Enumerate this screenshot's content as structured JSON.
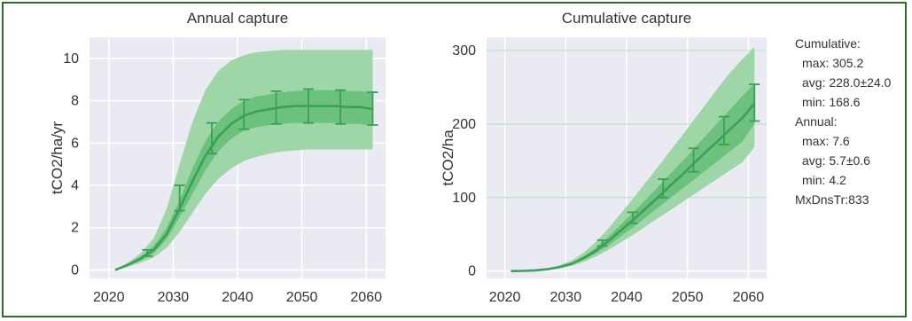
{
  "colors": {
    "plot_bg": "#e9eaf2",
    "grid": "#ffffff",
    "accent_grid": "#b7dcc2",
    "band_outer": "#9fd6a7",
    "band_inner": "#6cc17f",
    "line": "#3b9f55",
    "frame": "#2f6b2a",
    "text": "#333333"
  },
  "chart_data": [
    {
      "type": "area",
      "title": "Annual capture",
      "xlabel": "",
      "ylabel": "tCO2/ha/yr",
      "xlim": [
        2017,
        2063
      ],
      "ylim": [
        -0.4,
        11.0
      ],
      "xticks": [
        2020,
        2030,
        2040,
        2050,
        2060
      ],
      "yticks": [
        0,
        2,
        4,
        6,
        8,
        10
      ],
      "grid": true,
      "x": [
        2021,
        2023,
        2025,
        2027,
        2029,
        2031,
        2033,
        2035,
        2037,
        2039,
        2041,
        2043,
        2045,
        2047,
        2049,
        2051,
        2053,
        2055,
        2057,
        2059,
        2061
      ],
      "mean": [
        0.0,
        0.25,
        0.55,
        0.95,
        1.7,
        2.9,
        4.2,
        5.4,
        6.3,
        6.9,
        7.3,
        7.5,
        7.6,
        7.7,
        7.75,
        7.75,
        7.75,
        7.75,
        7.7,
        7.7,
        7.6
      ],
      "inner_low": [
        0.0,
        0.2,
        0.45,
        0.8,
        1.45,
        2.5,
        3.6,
        4.7,
        5.6,
        6.2,
        6.6,
        6.75,
        6.85,
        6.9,
        6.95,
        6.95,
        6.95,
        6.95,
        6.9,
        6.9,
        6.8
      ],
      "inner_high": [
        0.0,
        0.3,
        0.65,
        1.15,
        2.0,
        3.3,
        4.8,
        6.1,
        7.0,
        7.6,
        8.0,
        8.2,
        8.3,
        8.4,
        8.45,
        8.5,
        8.5,
        8.5,
        8.45,
        8.45,
        8.4
      ],
      "outer_low": [
        0.0,
        0.15,
        0.35,
        0.6,
        1.05,
        1.8,
        2.7,
        3.6,
        4.3,
        4.8,
        5.15,
        5.35,
        5.5,
        5.6,
        5.65,
        5.7,
        5.7,
        5.7,
        5.7,
        5.7,
        5.7
      ],
      "outer_high": [
        0.0,
        0.35,
        0.8,
        1.5,
        2.9,
        5.0,
        7.0,
        8.5,
        9.4,
        9.9,
        10.15,
        10.3,
        10.35,
        10.4,
        10.4,
        10.4,
        10.4,
        10.4,
        10.4,
        10.4,
        10.4
      ],
      "errorbars": [
        {
          "x": 2026,
          "mean": 0.8,
          "low": 0.65,
          "high": 0.95
        },
        {
          "x": 2031,
          "mean": 3.4,
          "low": 2.8,
          "high": 4.0
        },
        {
          "x": 2036,
          "mean": 6.2,
          "low": 5.5,
          "high": 6.95
        },
        {
          "x": 2041,
          "mean": 7.35,
          "low": 6.65,
          "high": 8.05
        },
        {
          "x": 2046,
          "mean": 7.65,
          "low": 6.9,
          "high": 8.45
        },
        {
          "x": 2051,
          "mean": 7.75,
          "low": 6.95,
          "high": 8.55
        },
        {
          "x": 2056,
          "mean": 7.7,
          "low": 6.9,
          "high": 8.5
        },
        {
          "x": 2061,
          "mean": 7.6,
          "low": 6.85,
          "high": 8.4
        }
      ]
    },
    {
      "type": "area",
      "title": "Cumulative capture",
      "xlabel": "",
      "ylabel": "tCO2/ha",
      "xlim": [
        2017,
        2063
      ],
      "ylim": [
        -10,
        318
      ],
      "xticks": [
        2020,
        2030,
        2040,
        2050,
        2060
      ],
      "yticks": [
        0,
        100,
        200,
        300
      ],
      "accent_hlines": [
        100,
        200,
        300
      ],
      "grid": true,
      "x": [
        2021,
        2023,
        2025,
        2027,
        2029,
        2031,
        2033,
        2035,
        2037,
        2039,
        2041,
        2043,
        2045,
        2047,
        2049,
        2051,
        2053,
        2055,
        2057,
        2059,
        2061
      ],
      "mean": [
        0,
        0.3,
        1.0,
        2.5,
        5.5,
        10,
        18,
        28,
        41,
        55,
        69,
        84,
        99,
        115,
        130,
        146,
        162,
        177,
        193,
        208,
        228
      ],
      "inner_low": [
        0,
        0.3,
        0.9,
        2.2,
        4.8,
        8.7,
        15.6,
        24,
        35,
        47,
        59,
        72,
        85,
        98,
        111,
        124,
        137,
        150,
        163,
        176,
        200
      ],
      "inner_high": [
        0,
        0.35,
        1.1,
        2.8,
        6.2,
        11.5,
        20.5,
        32,
        47,
        63,
        79,
        96,
        113,
        131,
        148,
        166,
        184,
        202,
        220,
        238,
        255
      ],
      "outer_low": [
        0,
        0.25,
        0.7,
        1.8,
        3.9,
        7.1,
        12.7,
        20,
        29,
        39,
        49,
        60,
        71,
        82,
        93,
        104,
        115,
        126,
        137,
        148,
        168.6
      ],
      "outer_high": [
        0,
        0.45,
        1.4,
        3.6,
        7.8,
        14.4,
        25.3,
        40,
        58,
        78,
        98,
        119,
        140,
        162,
        183,
        205,
        227,
        249,
        270,
        288,
        305.2
      ],
      "errorbars": [
        {
          "x": 2036,
          "mean": 38,
          "low": 34,
          "high": 42
        },
        {
          "x": 2041,
          "mean": 72,
          "low": 65,
          "high": 80
        },
        {
          "x": 2046,
          "mean": 112,
          "low": 100,
          "high": 125
        },
        {
          "x": 2051,
          "mean": 150,
          "low": 135,
          "high": 167
        },
        {
          "x": 2056,
          "mean": 190,
          "low": 172,
          "high": 210
        },
        {
          "x": 2061,
          "mean": 228,
          "low": 204,
          "high": 254
        }
      ]
    }
  ],
  "stats": {
    "cum_header": "Cumulative:",
    "cum_max": "max: 305.2",
    "cum_avg": "avg: 228.0±24.0",
    "cum_min": "min: 168.6",
    "ann_header": "Annual:",
    "ann_max": "max: 7.6",
    "ann_avg": "avg: 5.7±0.6",
    "ann_min": "min: 4.2",
    "density": "MxDnsTr:833"
  }
}
